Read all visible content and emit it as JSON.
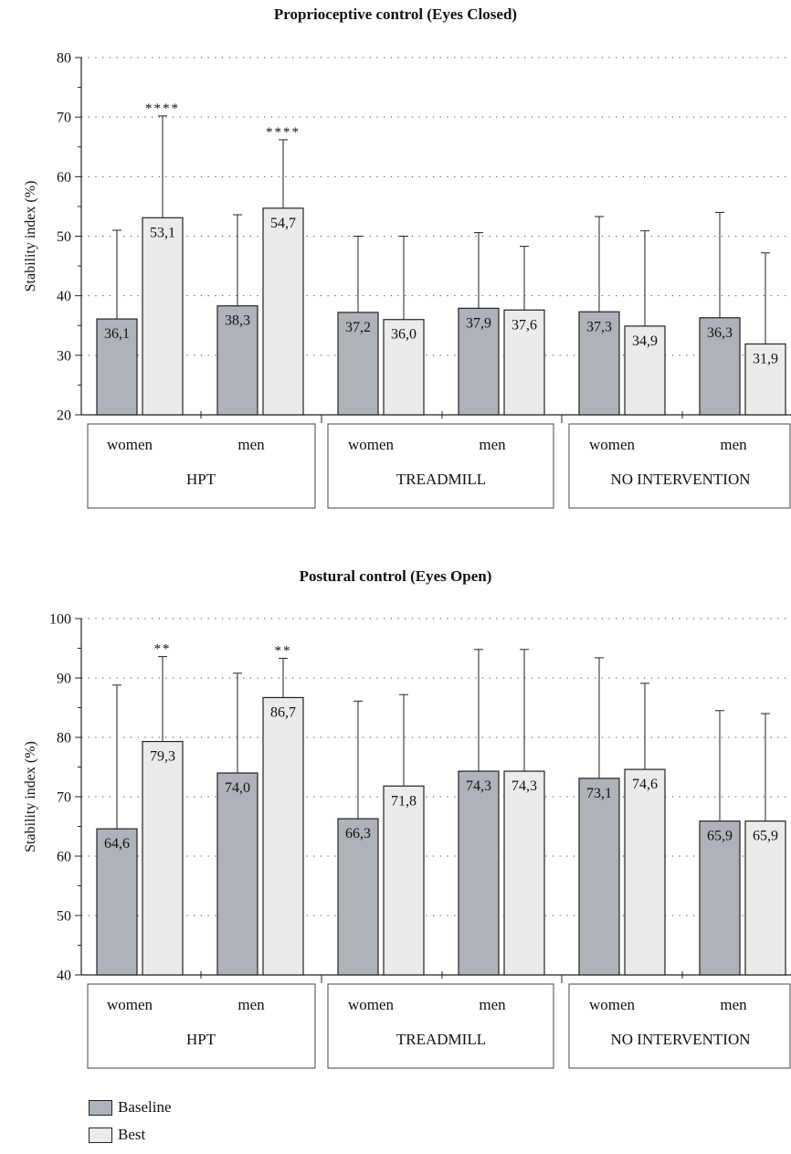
{
  "chart_data": [
    {
      "type": "bar",
      "title": "Proprioceptive control (Eyes Closed)",
      "ylabel": "Stability index (%)",
      "ylim": [
        20,
        80
      ],
      "yticks": [
        20,
        30,
        40,
        50,
        60,
        70,
        80
      ],
      "grid": true,
      "categories": [
        "women",
        "men",
        "women",
        "men",
        "women",
        "men"
      ],
      "groups": [
        {
          "name": "HPT",
          "categories": [
            "women",
            "men"
          ]
        },
        {
          "name": "TREADMILL",
          "categories": [
            "women",
            "men"
          ]
        },
        {
          "name": "NO INTERVENTION",
          "categories": [
            "women",
            "men"
          ]
        }
      ],
      "series": [
        {
          "name": "Baseline",
          "values": [
            36.1,
            38.3,
            37.2,
            37.9,
            37.3,
            36.3
          ],
          "labels": [
            "36,1",
            "38,3",
            "37,2",
            "37,9",
            "37,3",
            "36,3"
          ],
          "error_top": [
            51.0,
            53.6,
            50.0,
            50.6,
            53.3,
            54.0
          ]
        },
        {
          "name": "Best",
          "values": [
            53.1,
            54.7,
            36.0,
            37.6,
            34.9,
            31.9
          ],
          "labels": [
            "53,1",
            "54,7",
            "36,0",
            "37,6",
            "34,9",
            "31,9"
          ],
          "error_top": [
            70.2,
            66.2,
            50.0,
            48.3,
            50.9,
            47.2
          ]
        }
      ],
      "annotations": [
        {
          "text": "****",
          "category_index": 0,
          "series": "Best"
        },
        {
          "text": "****",
          "category_index": 1,
          "series": "Best"
        }
      ]
    },
    {
      "type": "bar",
      "title": "Postural control (Eyes Open)",
      "ylabel": "Stability index (%)",
      "ylim": [
        40,
        100
      ],
      "yticks": [
        40,
        50,
        60,
        70,
        80,
        90,
        100
      ],
      "grid": true,
      "categories": [
        "women",
        "men",
        "women",
        "men",
        "women",
        "men"
      ],
      "groups": [
        {
          "name": "HPT",
          "categories": [
            "women",
            "men"
          ]
        },
        {
          "name": "TREADMILL",
          "categories": [
            "women",
            "men"
          ]
        },
        {
          "name": "NO INTERVENTION",
          "categories": [
            "women",
            "men"
          ]
        }
      ],
      "series": [
        {
          "name": "Baseline",
          "values": [
            64.6,
            74.0,
            66.3,
            74.3,
            73.1,
            65.9
          ],
          "labels": [
            "64,6",
            "74,0",
            "66,3",
            "74,3",
            "73,1",
            "65,9"
          ],
          "error_top": [
            88.8,
            90.8,
            86.1,
            94.8,
            93.4,
            84.5
          ]
        },
        {
          "name": "Best",
          "values": [
            79.3,
            86.7,
            71.8,
            74.3,
            74.6,
            65.9
          ],
          "labels": [
            "79,3",
            "86,7",
            "71,8",
            "74,3",
            "74,6",
            "65,9"
          ],
          "error_top": [
            93.6,
            93.3,
            87.2,
            94.8,
            89.1,
            84.0
          ]
        }
      ],
      "annotations": [
        {
          "text": "**",
          "category_index": 0,
          "series": "Best"
        },
        {
          "text": "**",
          "category_index": 1,
          "series": "Best"
        }
      ]
    }
  ],
  "legend": {
    "placement": "bottom-left",
    "items": [
      {
        "label": "Baseline",
        "color": "#aeb2b9"
      },
      {
        "label": "Best",
        "color": "#ebebec"
      }
    ]
  }
}
